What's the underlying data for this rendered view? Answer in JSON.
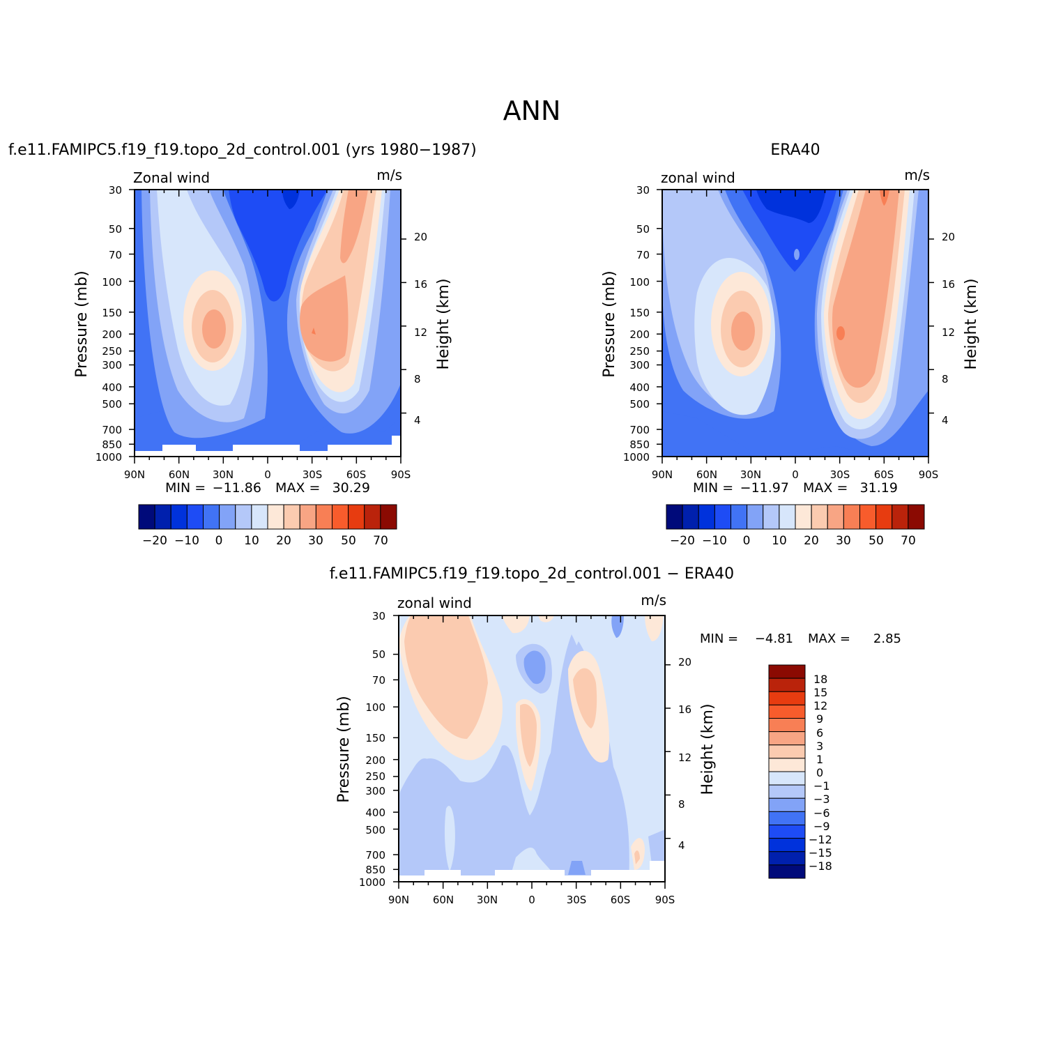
{
  "figure_title": "ANN",
  "chart_data": [
    {
      "type": "heatmap",
      "title": "f.e11.FAMIPC5.f19_f19.topo_2d_control.001 (yrs 1980-1987)",
      "left_string": "Zonal wind",
      "right_string": "m/s",
      "ylabel": "Pressure (mb)",
      "ylabel_right": "Height (km)",
      "xticks": [
        "90N",
        "60N",
        "30N",
        "0",
        "30S",
        "60S",
        "90S"
      ],
      "yticks": [
        "30",
        "50",
        "70",
        "100",
        "150",
        "200",
        "250",
        "300",
        "400",
        "500",
        "700",
        "850",
        "1000"
      ],
      "yticks_right": [
        "20",
        "16",
        "12",
        "8",
        "4"
      ],
      "min_label": "MIN =",
      "min_value": "-11.86",
      "max_label": "MAX =",
      "max_value": "30.29",
      "colorbar_labels": [
        "-20",
        "-10",
        "0",
        "10",
        "20",
        "30",
        "50",
        "70"
      ],
      "colorbar_levels": [
        -25,
        -20,
        -15,
        -10,
        -5,
        0,
        5,
        10,
        15,
        20,
        25,
        30,
        40,
        50,
        60,
        70,
        80
      ],
      "ylim": [
        1000,
        30
      ],
      "x_range": [
        "90N",
        "90S"
      ]
    },
    {
      "type": "heatmap",
      "title": "ERA40",
      "left_string": "zonal wind",
      "right_string": "m/s",
      "ylabel": "Pressure (mb)",
      "ylabel_right": "Height (km)",
      "xticks": [
        "90N",
        "60N",
        "30N",
        "0",
        "30S",
        "60S",
        "90S"
      ],
      "yticks": [
        "30",
        "50",
        "70",
        "100",
        "150",
        "200",
        "250",
        "300",
        "400",
        "500",
        "700",
        "850",
        "1000"
      ],
      "yticks_right": [
        "20",
        "16",
        "12",
        "8",
        "4"
      ],
      "min_label": "MIN =",
      "min_value": "-11.97",
      "max_label": "MAX =",
      "max_value": "31.19",
      "colorbar_labels": [
        "-20",
        "-10",
        "0",
        "10",
        "20",
        "30",
        "50",
        "70"
      ],
      "colorbar_levels": [
        -25,
        -20,
        -15,
        -10,
        -5,
        0,
        5,
        10,
        15,
        20,
        25,
        30,
        40,
        50,
        60,
        70,
        80
      ],
      "ylim": [
        1000,
        30
      ],
      "x_range": [
        "90N",
        "90S"
      ]
    },
    {
      "type": "heatmap",
      "title": "f.e11.FAMIPC5.f19_f19.topo_2d_control.001 - ERA40",
      "left_string": "zonal wind",
      "right_string": "m/s",
      "ylabel": "Pressure (mb)",
      "ylabel_right": "Height (km)",
      "xticks": [
        "90N",
        "60N",
        "30N",
        "0",
        "30S",
        "60S",
        "90S"
      ],
      "yticks": [
        "30",
        "50",
        "70",
        "100",
        "150",
        "200",
        "250",
        "300",
        "400",
        "500",
        "700",
        "850",
        "1000"
      ],
      "yticks_right": [
        "20",
        "16",
        "12",
        "8",
        "4"
      ],
      "min_label": "MIN =",
      "min_value": "-4.81",
      "max_label": "MAX =",
      "max_value": "2.85",
      "colorbar_labels": [
        "18",
        "15",
        "12",
        "9",
        "6",
        "3",
        "1",
        "0",
        "-1",
        "-3",
        "-6",
        "-9",
        "-12",
        "-15",
        "-18"
      ],
      "colorbar_levels": [
        -18,
        -15,
        -12,
        -9,
        -6,
        -3,
        -1,
        0,
        1,
        3,
        6,
        9,
        12,
        15,
        18
      ],
      "ylim": [
        1000,
        30
      ],
      "x_range": [
        "90N",
        "90S"
      ]
    }
  ],
  "colors": {
    "palette": [
      "#000a7a",
      "#0020ad",
      "#0032dc",
      "#1e4cf5",
      "#4173f5",
      "#82a3f7",
      "#b4c8f9",
      "#d7e6fb",
      "#fde8d8",
      "#fbcbb0",
      "#f8a584",
      "#f87f55",
      "#f85c2c",
      "#e73c10",
      "#ba230b",
      "#8b0a02"
    ],
    "missing": "#ffffff"
  }
}
